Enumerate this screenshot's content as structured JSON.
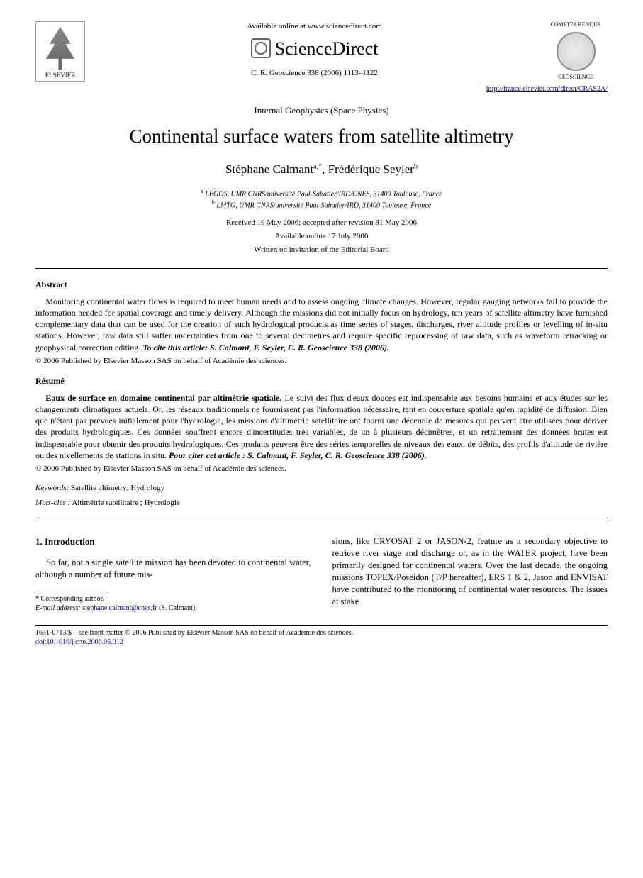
{
  "header": {
    "elsevier_label": "ELSEVIER",
    "available_online": "Available online at www.sciencedirect.com",
    "sciencedirect": "ScienceDirect",
    "citation_line": "C. R. Geoscience 338 (2006) 1113–1122",
    "journal_top": "COMPTES RENDUS",
    "journal_bottom": "GEOSCIENCE",
    "journal_link": "http://france.elsevier.com/direct/CRAS2A/"
  },
  "section_label": "Internal Geophysics (Space Physics)",
  "title": "Continental surface waters from satellite altimetry",
  "authors_html": "Stéphane Calmant",
  "author1_sup": "a,*",
  "author2": "Frédérique Seyler",
  "author2_sup": "b",
  "affiliations": {
    "a": "LEGOS, UMR CNRS/université Paul-Sabatier/IRD/CNES, 31400 Toulouse, France",
    "b": "LMTG, UMR CNRS/université Paul-Sabatier/IRD, 31400 Toulouse, France"
  },
  "dates": {
    "received": "Received 19 May 2006; accepted after revision 31 May 2006",
    "online": "Available online 17 July 2006"
  },
  "invitation": "Written on invitation of the Editorial Board",
  "abstract": {
    "heading": "Abstract",
    "text": "Monitoring continental water flows is required to meet human needs and to assess ongoing climate changes. However, regular gauging networks fail to provide the information needed for spatial coverage and timely delivery. Although the missions did not initially focus on hydrology, ten years of satellite altimetry have furnished complementary data that can be used for the creation of such hydrological products as time series of stages, discharges, river altitude profiles or levelling of in-situ stations. However, raw data still suffer uncertainties from one to several decimetres and require specific reprocessing of raw data, such as waveform retracking or geophysical correction editing. ",
    "cite": "To cite this article: S. Calmant, F. Seyler, C. R. Geoscience 338 (2006).",
    "copyright": "© 2006 Published by Elsevier Masson SAS on behalf of Académie des sciences."
  },
  "resume": {
    "heading": "Résumé",
    "lead": "Eaux de surface en domaine continental par altimétrie spatiale.",
    "text": " Le suivi des flux d'eaux douces est indispensable aux besoins humains et aux études sur les changements climatiques actuels. Or, les réseaux traditionnels ne fournissent pas l'information nécessaire, tant en couverture spatiale qu'en rapidité de diffusion. Bien que n'étant pas prévues initialement pour l'hydrologie, les missions d'altimétrie satellitaire ont fourni une décennie de mesures qui peuvent être utilisées pour dériver des produits hydrologiques. Ces données souffrent encore d'incertitudes très variables, de un à plusieurs décimètres, et un retraitement des données brutes est indispensable pour obtenir des produits hydrologiques. Ces produits peuvent être des séries temporelles de niveaux des eaux, de débits, des profils d'altitude de rivière ou des nivellements de stations in situ. ",
    "cite": "Pour citer cet article : S. Calmant, F. Seyler, C. R. Geoscience 338 (2006).",
    "copyright": "© 2006 Published by Elsevier Masson SAS on behalf of Académie des sciences."
  },
  "keywords": {
    "label": "Keywords:",
    "text": " Satellite altimetry; Hydrology"
  },
  "motscles": {
    "label": "Mots-clés :",
    "text": " Altimétrie satellitaire ; Hydrologie"
  },
  "intro": {
    "heading": "1. Introduction",
    "col1": "So far, not a single satellite mission has been devoted to continental water, although a number of future mis-",
    "col2": "sions, like CRYOSAT 2 or JASON-2, feature as a secondary objective to retrieve river stage and discharge or, as in the WATER project, have been primarily designed for continental waters. Over the last decade, the ongoing missions TOPEX/Poseidon (T/P hereafter), ERS 1 & 2, Jason and ENVISAT have contributed to the monitoring of continental water resources. The issues at stake"
  },
  "footnote": {
    "corresponding": "* Corresponding author.",
    "email_label": "E-mail address:",
    "email": "stephane.calmant@cnes.fr",
    "email_author": " (S. Calmant)."
  },
  "footer": {
    "issn": "1631-0713/$ – see front matter © 2006 Published by Elsevier Masson SAS on behalf of Académie des sciences.",
    "doi": "doi:10.1016/j.crte.2006.05.012"
  }
}
